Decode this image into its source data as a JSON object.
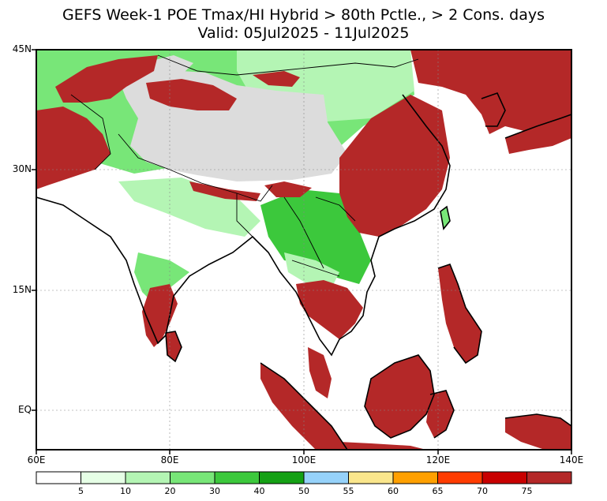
{
  "title_line1": "GEFS Week-1 POE Tmax/HI Hybrid > 80th Pctle., > 2 Cons. days",
  "title_line2": "Valid: 05Jul2025 - 11Jul2025",
  "lat_labels": [
    "45N",
    "30N",
    "15N",
    "EQ"
  ],
  "lon_labels": [
    "60E",
    "80E",
    "100E",
    "120E",
    "140E"
  ],
  "colorbar": {
    "labels": [
      "5",
      "10",
      "20",
      "30",
      "40",
      "50",
      "55",
      "60",
      "65",
      "70",
      "75"
    ],
    "colors": [
      "#ffffff",
      "#e6ffe6",
      "#b4f5b4",
      "#78e678",
      "#3cc83c",
      "#14a014",
      "#96d2fa",
      "#fae68c",
      "#ffa000",
      "#ff3c00",
      "#c80000",
      "#b42828"
    ]
  },
  "legend_colors": {
    "no_data": "#dcdcdc",
    "land_low": "#ffffff",
    "green_light": "#b4f5b4",
    "green_mid": "#78e678",
    "green_dark": "#14a014",
    "high": "#b42828"
  }
}
